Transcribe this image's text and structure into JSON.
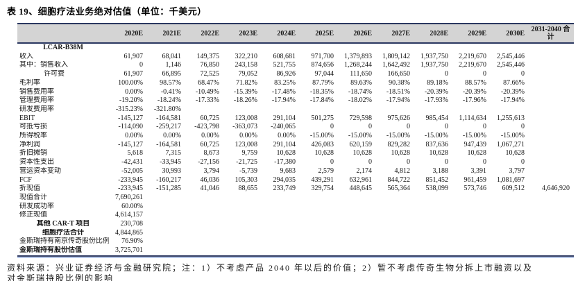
{
  "title": "表 19、细胞疗法业务绝对估值（单位：千美元）",
  "source_note": "资料来源：兴业证券经济与金融研究院；注：1）不考虑产品 2040 年以后的价值；2）暂不考虑传奇生物分拆上市融资以及",
  "source_note_line2": "对金斯瑞持股比例的影响",
  "table": {
    "columns": [
      "",
      "2020E",
      "2021E",
      "2022E",
      "2023E",
      "2024E",
      "2025E",
      "2026E",
      "2027E",
      "2028E",
      "2029E",
      "2030E",
      "2031-2040 合计"
    ],
    "rows": [
      {
        "label": "LCAR-B38M",
        "bold": true,
        "center": true,
        "values": [
          "",
          "",
          "",
          "",
          "",
          "",
          "",
          "",
          "",
          "",
          "",
          ""
        ]
      },
      {
        "label": "收入",
        "values": [
          "61,907",
          "68,041",
          "149,375",
          "322,210",
          "608,681",
          "971,700",
          "1,379,893",
          "1,809,142",
          "1,937,750",
          "2,219,670",
          "2,545,446",
          ""
        ]
      },
      {
        "label": "其中：销售收入",
        "values": [
          "0",
          "1,146",
          "76,850",
          "243,158",
          "521,755",
          "874,656",
          "1,268,244",
          "1,642,492",
          "1,937,750",
          "2,219,670",
          "2,545,446",
          ""
        ]
      },
      {
        "label": "许可费",
        "indent": true,
        "values": [
          "61,907",
          "66,895",
          "72,525",
          "79,052",
          "86,926",
          "97,044",
          "111,650",
          "166,650",
          "0",
          "0",
          "0",
          ""
        ]
      },
      {
        "label": "毛利率",
        "values": [
          "100.00%",
          "98.57%",
          "68.47%",
          "71.82%",
          "83.25%",
          "87.79%",
          "89.63%",
          "90.38%",
          "89.18%",
          "88.57%",
          "87.66%",
          ""
        ]
      },
      {
        "label": "销售费用率",
        "values": [
          "0.00%",
          "-0.41%",
          "-10.49%",
          "-15.39%",
          "-17.48%",
          "-18.35%",
          "-18.74%",
          "-18.51%",
          "-20.39%",
          "-20.39%",
          "-20.39%",
          ""
        ]
      },
      {
        "label": "管理费用率",
        "values": [
          "-19.20%",
          "-18.24%",
          "-17.33%",
          "-18.26%",
          "-17.94%",
          "-17.84%",
          "-18.02%",
          "-17.94%",
          "-17.93%",
          "-17.96%",
          "-17.94%",
          ""
        ]
      },
      {
        "label": "研发费用率",
        "values": [
          "-315.23%",
          "-321.80%",
          "",
          "",
          "",
          "",
          "",
          "",
          "",
          "",
          "",
          ""
        ]
      },
      {
        "label": "EBIT",
        "values": [
          "-145,127",
          "-164,581",
          "60,725",
          "123,008",
          "291,104",
          "501,275",
          "729,598",
          "975,626",
          "985,454",
          "1,114,634",
          "1,255,613",
          ""
        ]
      },
      {
        "label": "可抵亏损",
        "values": [
          "-114,090",
          "-259,217",
          "-423,798",
          "-363,073",
          "-240,065",
          "0",
          "0",
          "0",
          "0",
          "0",
          "0",
          ""
        ]
      },
      {
        "label": "所得税率",
        "values": [
          "0.00%",
          "0.00%",
          "0.00%",
          "0.00%",
          "0.00%",
          "-15.00%",
          "-15.00%",
          "-15.00%",
          "-15.00%",
          "-15.00%",
          "-15.00%",
          ""
        ]
      },
      {
        "label": "净利润",
        "values": [
          "-145,127",
          "-164,581",
          "60,725",
          "123,008",
          "291,104",
          "426,083",
          "620,159",
          "829,282",
          "837,636",
          "947,439",
          "1,067,271",
          ""
        ]
      },
      {
        "label": "折旧摊销",
        "values": [
          "5,618",
          "7,315",
          "8,673",
          "9,759",
          "10,628",
          "10,628",
          "10,628",
          "10,628",
          "10,628",
          "10,628",
          "10,628",
          ""
        ]
      },
      {
        "label": "资本性支出",
        "values": [
          "-42,431",
          "-33,945",
          "-27,156",
          "-21,725",
          "-17,380",
          "0",
          "0",
          "0",
          "0",
          "0",
          "0",
          ""
        ]
      },
      {
        "label": "营运资本变动",
        "values": [
          "-52,005",
          "30,993",
          "3,794",
          "-5,739",
          "9,683",
          "2,579",
          "2,174",
          "4,812",
          "3,188",
          "3,391",
          "3,797",
          ""
        ]
      },
      {
        "label": "FCF",
        "values": [
          "-233,945",
          "-160,217",
          "46,036",
          "105,303",
          "294,035",
          "439,291",
          "632,961",
          "844,722",
          "851,452",
          "961,459",
          "1,081,697",
          ""
        ]
      },
      {
        "label": "折现值",
        "values": [
          "-233,945",
          "-151,285",
          "41,046",
          "88,655",
          "233,749",
          "329,754",
          "448,645",
          "565,364",
          "538,099",
          "573,746",
          "609,512",
          "4,646,920"
        ]
      },
      {
        "label": "现值合计",
        "values": [
          "7,690,261",
          "",
          "",
          "",
          "",
          "",
          "",
          "",
          "",
          "",
          "",
          ""
        ]
      },
      {
        "label": "研发成功率",
        "values": [
          "60.00%",
          "",
          "",
          "",
          "",
          "",
          "",
          "",
          "",
          "",
          "",
          ""
        ]
      },
      {
        "label": "修正现值",
        "values": [
          "4,614,157",
          "",
          "",
          "",
          "",
          "",
          "",
          "",
          "",
          "",
          "",
          ""
        ]
      },
      {
        "label": "其他 CAR-T 项目",
        "bold": true,
        "center": true,
        "values": [
          "230,708",
          "",
          "",
          "",
          "",
          "",
          "",
          "",
          "",
          "",
          "",
          ""
        ]
      },
      {
        "label": "细胞疗法合计",
        "bold": true,
        "center": true,
        "values": [
          "4,844,865",
          "",
          "",
          "",
          "",
          "",
          "",
          "",
          "",
          "",
          "",
          ""
        ]
      },
      {
        "label": "金斯瑞持有南京传奇股份比例",
        "values": [
          "76.90%",
          "",
          "",
          "",
          "",
          "",
          "",
          "",
          "",
          "",
          "",
          ""
        ]
      },
      {
        "label": "金斯瑞持有股份估值",
        "bold": true,
        "values": [
          "3,725,701",
          "",
          "",
          "",
          "",
          "",
          "",
          "",
          "",
          "",
          "",
          ""
        ]
      }
    ]
  }
}
